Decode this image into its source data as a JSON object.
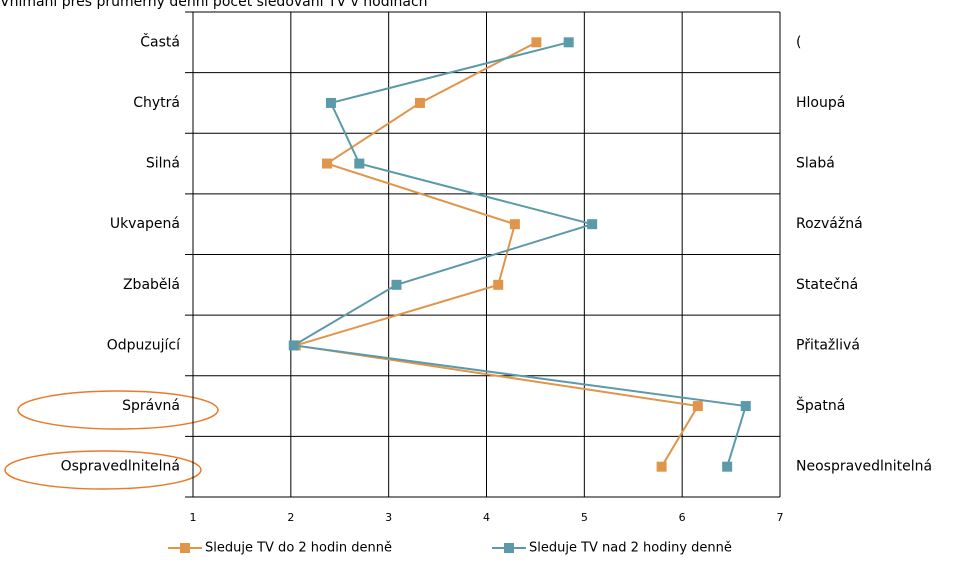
{
  "chart_data": {
    "type": "line",
    "title": "Vnímání přes průměrný denní počet sledování TV v hodinách",
    "categories": [
      "Častá",
      "Chytrá",
      "Silná",
      "Ukvapená",
      "Zbabělá",
      "Odpuzující",
      "Správná",
      "Ospravedlnitelná"
    ],
    "right_labels": [
      "(",
      "Hloupá",
      "Slabá",
      "Rozvážná",
      "Statečná",
      "Přitažlivá",
      "Špatná",
      "Neospravedlnitelná"
    ],
    "series": [
      {
        "name": "Sleduje TV do 2 hodin denně",
        "color": "#e0954a",
        "values": [
          4.51,
          3.32,
          2.37,
          4.29,
          4.12,
          2.05,
          6.16,
          5.79
        ]
      },
      {
        "name": "Sleduje TV nad 2 hodiny denně",
        "color": "#5b9aa8",
        "values": [
          4.84,
          2.41,
          2.7,
          5.08,
          3.08,
          2.03,
          6.65,
          6.46
        ]
      }
    ],
    "xlim": [
      1,
      7
    ],
    "xticks": [
      1,
      2,
      3,
      4,
      5,
      6,
      7
    ],
    "grid": true
  }
}
